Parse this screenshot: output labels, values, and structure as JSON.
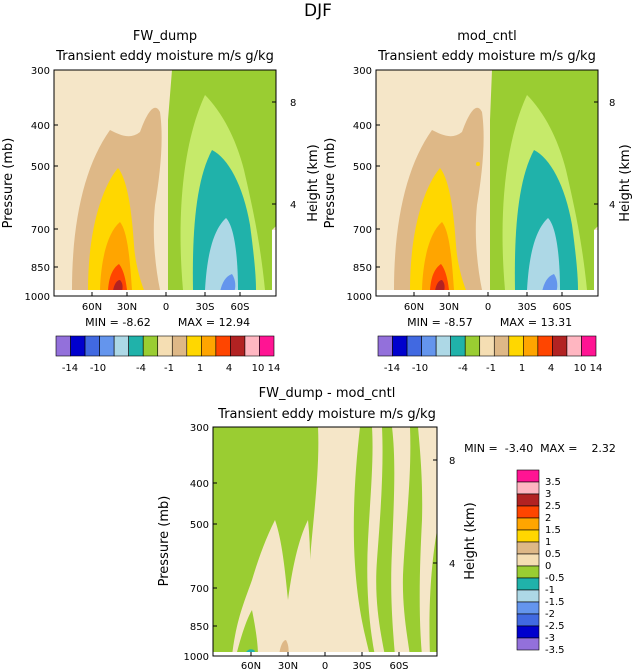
{
  "figure_title": "DJF",
  "colors": {
    "contour": [
      "#9370db",
      "#0000cd",
      "#4169e1",
      "#6495ed",
      "#add8e6",
      "#20b2aa",
      "#9acd32",
      "#f5deb3",
      "#deb887",
      "#ffd700",
      "#ffa500",
      "#ff4500",
      "#b22222",
      "#ffb6c1",
      "#ff1493"
    ],
    "background_band": "#f5e6c8"
  },
  "chart_data": [
    {
      "type": "contour",
      "title": "FW_dump",
      "subtitle": "Transient eddy moisture m/s g/kg",
      "ylabel": "Pressure (mb)",
      "ylabel_right": "Height (km)",
      "pressure_ticks": [
        300,
        400,
        500,
        700,
        850,
        1000
      ],
      "height_ticks": [
        8,
        4
      ],
      "lat_ticks": [
        "60N",
        "30N",
        "0",
        "30S",
        "60S"
      ],
      "min_label": "MIN = -8.62",
      "max_label": "MAX = 12.94",
      "colorbar_ticks": [
        "-14",
        "-10",
        "-4",
        "-1",
        "1",
        "4",
        "10",
        "14"
      ]
    },
    {
      "type": "contour",
      "title": "mod_cntl",
      "subtitle": "Transient eddy moisture m/s g/kg",
      "ylabel": "Pressure (mb)",
      "ylabel_right": "Height (km)",
      "pressure_ticks": [
        300,
        400,
        500,
        700,
        850,
        1000
      ],
      "height_ticks": [
        8,
        4
      ],
      "lat_ticks": [
        "60N",
        "30N",
        "0",
        "30S",
        "60S"
      ],
      "min_label": "MIN = -8.57",
      "max_label": "MAX = 13.31",
      "colorbar_ticks": [
        "-14",
        "-10",
        "-4",
        "-1",
        "1",
        "4",
        "10",
        "14"
      ]
    },
    {
      "type": "contour",
      "title": "FW_dump - mod_cntl",
      "subtitle": "Transient eddy moisture m/s g/kg",
      "ylabel": "Pressure (mb)",
      "ylabel_right": "Height (km)",
      "pressure_ticks": [
        300,
        400,
        500,
        700,
        850,
        1000
      ],
      "height_ticks": [
        8,
        4
      ],
      "lat_ticks": [
        "60N",
        "30N",
        "0",
        "30S",
        "60S"
      ],
      "minmax_label": "MIN =  -3.40  MAX =    2.32",
      "colorbar_ticks": [
        "3.5",
        "3",
        "2.5",
        "2",
        "1.5",
        "1",
        "0.5",
        "0",
        "-0.5",
        "-1",
        "-1.5",
        "-2",
        "-2.5",
        "-3",
        "-3.5"
      ]
    }
  ]
}
